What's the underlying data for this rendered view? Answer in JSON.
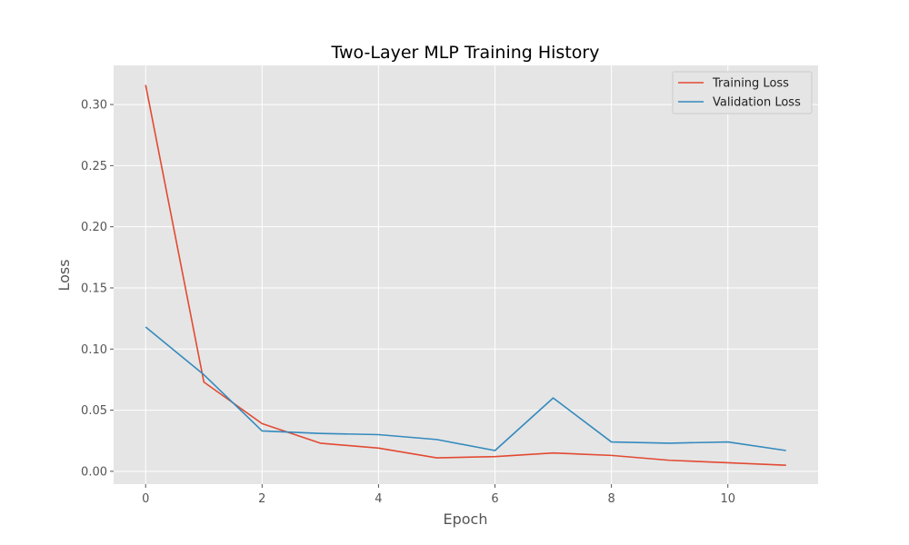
{
  "chart_data": {
    "type": "line",
    "title": "Two-Layer MLP Training History",
    "xlabel": "Epoch",
    "ylabel": "Loss",
    "x": [
      0,
      1,
      2,
      3,
      4,
      5,
      6,
      7,
      8,
      9,
      10,
      11
    ],
    "xlim": [
      -0.55,
      11.55
    ],
    "ylim": [
      -0.0105,
      0.332
    ],
    "xticks": [
      0,
      2,
      4,
      6,
      8,
      10
    ],
    "xtick_labels": [
      "0",
      "2",
      "4",
      "6",
      "8",
      "10"
    ],
    "yticks": [
      0.0,
      0.05,
      0.1,
      0.15,
      0.2,
      0.25,
      0.3
    ],
    "ytick_labels": [
      "0.00",
      "0.05",
      "0.10",
      "0.15",
      "0.20",
      "0.25",
      "0.30"
    ],
    "grid": true,
    "legend_position": "top-right",
    "background_color": "#e5e5e5",
    "grid_color": "#ffffff",
    "series": [
      {
        "name": "Training Loss",
        "color": "#e24a33",
        "values": [
          0.316,
          0.073,
          0.039,
          0.023,
          0.019,
          0.011,
          0.012,
          0.015,
          0.013,
          0.009,
          0.007,
          0.005
        ]
      },
      {
        "name": "Validation Loss",
        "color": "#348abd",
        "values": [
          0.118,
          0.079,
          0.033,
          0.031,
          0.03,
          0.026,
          0.017,
          0.06,
          0.024,
          0.023,
          0.024,
          0.017
        ]
      }
    ]
  }
}
